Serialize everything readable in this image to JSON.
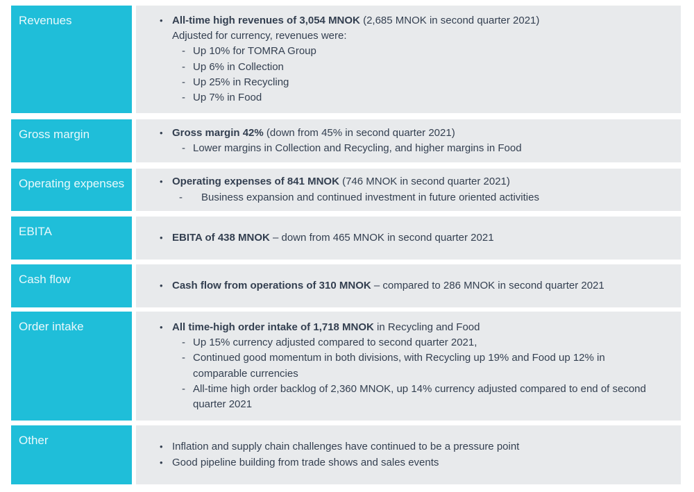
{
  "colors": {
    "accent": "#1FBED9",
    "panel": "#E8EAEC",
    "text": "#333F50",
    "label_text": "#E9F9FC",
    "background": "#FFFFFF"
  },
  "markers": {
    "bullet": "•",
    "dash": "-"
  },
  "rows": [
    {
      "label": "Revenues",
      "bullet_bold": "All-time high revenues of 3,054 MNOK",
      "bullet_rest": " (2,685 MNOK in second quarter 2021)",
      "continuation": "Adjusted for currency, revenues were:",
      "subs": [
        "Up 10% for TOMRA Group",
        "Up 6% in Collection",
        "Up 25% in Recycling",
        "Up 7% in Food"
      ]
    },
    {
      "label": "Gross margin",
      "bullet_bold": "Gross margin 42%",
      "bullet_rest": " (down from 45% in second quarter 2021)",
      "subs": [
        "Lower margins in Collection and Recycling, and higher margins in Food"
      ]
    },
    {
      "label": "Operating expenses",
      "bullet_bold": "Operating expenses of 841 MNOK",
      "bullet_rest": " (746 MNOK in second quarter 2021)",
      "subs": [
        "Business expansion and continued investment in future oriented activities"
      ]
    },
    {
      "label": "EBITA",
      "bullet_bold": "EBITA of 438 MNOK",
      "bullet_rest": " – down from 465 MNOK in second quarter 2021"
    },
    {
      "label": "Cash flow",
      "bullet_bold": "Cash flow from operations of 310 MNOK",
      "bullet_rest": " – compared to 286 MNOK in second quarter 2021"
    },
    {
      "label": "Order intake",
      "bullet_bold": "All time-high order intake of 1,718 MNOK",
      "bullet_rest": " in Recycling and Food",
      "subs": [
        "Up 15% currency adjusted compared to second quarter 2021,",
        "Continued good momentum in both divisions, with Recycling up 19% and Food up 12% in comparable currencies",
        "All-time high order backlog of 2,360 MNOK, up 14% currency adjusted compared to end of second quarter 2021"
      ]
    },
    {
      "label": "Other",
      "bullets": [
        "Inflation and supply chain challenges have continued to be a pressure point",
        "Good pipeline building from trade shows and sales events"
      ]
    }
  ]
}
